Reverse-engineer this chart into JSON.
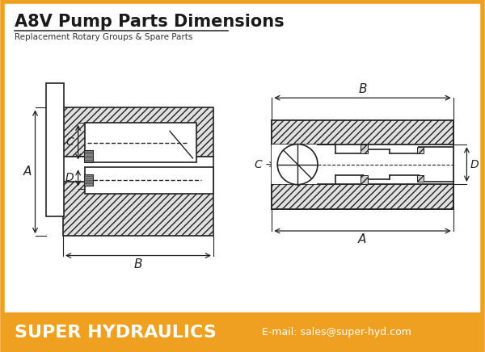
{
  "title": "A8V Pump Parts Dimensions",
  "subtitle": "Replacement Rotary Groups & Spare Parts",
  "footer_company": "SUPER HYDRAULICS",
  "footer_email": "E-mail: sales@super-hyd.com",
  "bg_color": "#ffffff",
  "border_color": "#f0a020",
  "footer_bg": "#f0a020",
  "title_color": "#1a1a1a",
  "footer_text_color": "#ffffff",
  "hatch_color": "#555555",
  "line_color": "#222222",
  "gray_fill": "#aaaaaa"
}
